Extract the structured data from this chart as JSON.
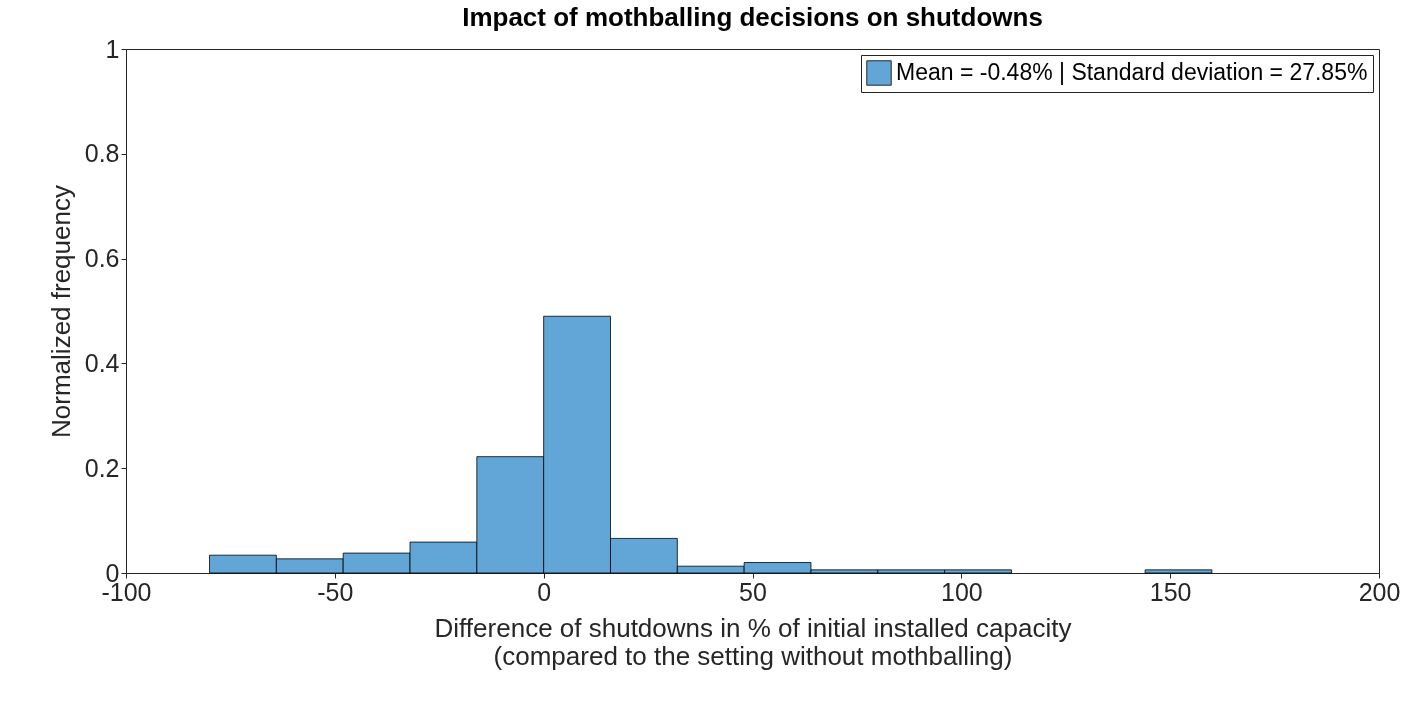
{
  "chart_data": {
    "type": "histogram",
    "title": "Impact of mothballing decisions on shutdowns",
    "xlabel": "Difference of shutdowns in % of initial installed capacity\n(compared to the setting without mothballing)",
    "ylabel": "Normalized frequency",
    "bins": [
      -80,
      -64,
      -48,
      -32,
      -16,
      0,
      16,
      32,
      48,
      64,
      80,
      96,
      112,
      128,
      144,
      160
    ],
    "series": [
      {
        "name": "Mean = -0.48% | Standard deviation = 27.85%",
        "color": "#61a6d6",
        "values": [
          0.034,
          0.027,
          0.038,
          0.059,
          0.222,
          0.49,
          0.066,
          0.013,
          0.02,
          0.006,
          0.006,
          0.006,
          0,
          0,
          0.006
        ]
      }
    ],
    "xlim": [
      -100,
      200
    ],
    "xticks": [
      -100,
      -50,
      0,
      50,
      100,
      150,
      200
    ],
    "ylim": [
      0,
      1
    ],
    "yticks": [
      0,
      0.2,
      0.4,
      0.6,
      0.8,
      1
    ],
    "grid": false,
    "legend": "top right"
  }
}
